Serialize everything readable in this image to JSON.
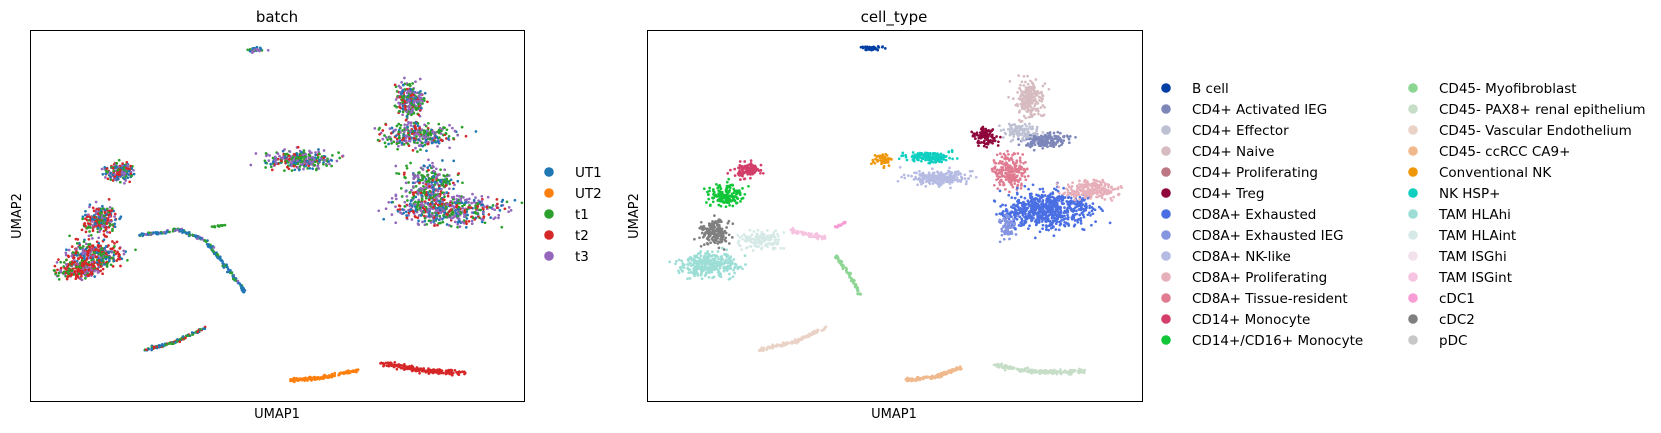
{
  "chart_data": [
    {
      "type": "scatter",
      "title": "batch",
      "xlabel": "UMAP1",
      "ylabel": "UMAP2",
      "legend_position": "right",
      "series": [
        {
          "name": "UT1",
          "color": "#1f77b4"
        },
        {
          "name": "UT2",
          "color": "#ff7f0e"
        },
        {
          "name": "t1",
          "color": "#2ca02c"
        },
        {
          "name": "t2",
          "color": "#d62728"
        },
        {
          "name": "t3",
          "color": "#9467bd"
        }
      ]
    },
    {
      "type": "scatter",
      "title": "cell_type",
      "xlabel": "UMAP1",
      "ylabel": "UMAP2",
      "legend_position": "right",
      "series": [
        {
          "name": "B cell",
          "color": "#023fa5"
        },
        {
          "name": "CD4+ Activated IEG",
          "color": "#7d87b9"
        },
        {
          "name": "CD4+ Effector",
          "color": "#bec1d4"
        },
        {
          "name": "CD4+ Naive",
          "color": "#d6bcc0"
        },
        {
          "name": "CD4+ Proliferating",
          "color": "#bb7784"
        },
        {
          "name": "CD4+ Treg",
          "color": "#8e063b"
        },
        {
          "name": "CD8A+ Exhausted",
          "color": "#4a6fe3"
        },
        {
          "name": "CD8A+ Exhausted IEG",
          "color": "#8595e1"
        },
        {
          "name": "CD8A+ NK-like",
          "color": "#b5bbe3"
        },
        {
          "name": "CD8A+ Proliferating",
          "color": "#e6afb9"
        },
        {
          "name": "CD8A+ Tissue-resident",
          "color": "#e07b91"
        },
        {
          "name": "CD14+ Monocyte",
          "color": "#d33f6a"
        },
        {
          "name": "CD14+/CD16+ Monocyte",
          "color": "#11c638"
        },
        {
          "name": "CD45- Myofibroblast",
          "color": "#8dd593"
        },
        {
          "name": "CD45- PAX8+ renal epithelium",
          "color": "#c6dec7"
        },
        {
          "name": "CD45- Vascular Endothelium",
          "color": "#ead3c6"
        },
        {
          "name": "CD45- ccRCC CA9+",
          "color": "#f0b98d"
        },
        {
          "name": "Conventional NK",
          "color": "#ef9708"
        },
        {
          "name": "NK HSP+",
          "color": "#0fcfc0"
        },
        {
          "name": "TAM HLAhi",
          "color": "#9cded6"
        },
        {
          "name": "TAM HLAint",
          "color": "#d5eae7"
        },
        {
          "name": "TAM ISGhi",
          "color": "#f3e1eb"
        },
        {
          "name": "TAM ISGint",
          "color": "#f6c4e1"
        },
        {
          "name": "cDC1",
          "color": "#f79cd4"
        },
        {
          "name": "cDC2",
          "color": "#7f7f7f"
        },
        {
          "name": "pDC",
          "color": "#c7c7c7"
        }
      ]
    }
  ]
}
